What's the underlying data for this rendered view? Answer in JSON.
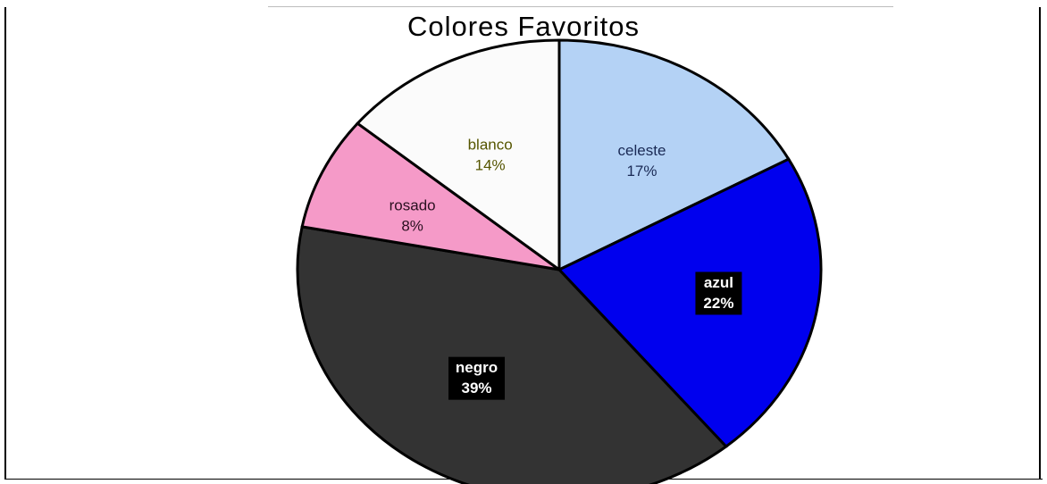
{
  "chart_data": {
    "type": "pie",
    "title": "Colores Favoritos",
    "slices": [
      {
        "label": "celeste",
        "value": 17,
        "percent_label": "17%",
        "color": "#b4d2f5",
        "label_color": "#1a2a55"
      },
      {
        "label": "azul",
        "value": 22,
        "percent_label": "22%",
        "color": "#0000ee",
        "label_color": "#ffffff",
        "label_bg": "#000000"
      },
      {
        "label": "negro",
        "value": 39,
        "percent_label": "39%",
        "color": "#333333",
        "label_color": "#ffffff",
        "label_bg": "#000000"
      },
      {
        "label": "rosado",
        "value": 8,
        "percent_label": "8%",
        "color": "#f59ac8",
        "label_color": "#2a1020"
      },
      {
        "label": "blanco",
        "value": 14,
        "percent_label": "14%",
        "color": "#fbfbfb",
        "label_color": "#555500"
      }
    ]
  }
}
